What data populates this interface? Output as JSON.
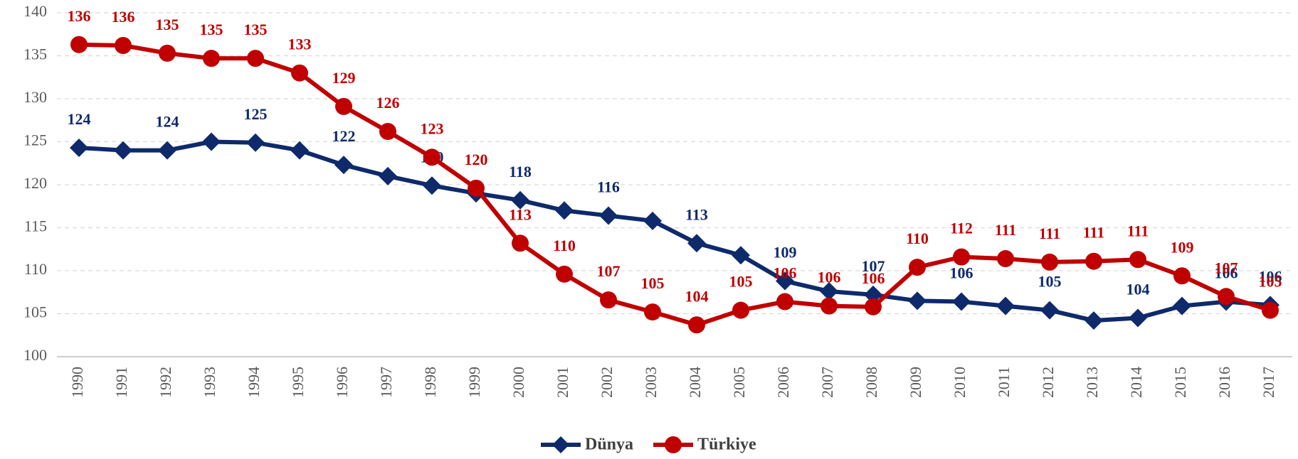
{
  "chart_data": {
    "type": "line",
    "categories": [
      "1990",
      "1991",
      "1992",
      "1993",
      "1994",
      "1995",
      "1996",
      "1997",
      "1998",
      "1999",
      "2000",
      "2001",
      "2002",
      "2003",
      "2004",
      "2005",
      "2006",
      "2007",
      "2008",
      "2009",
      "2010",
      "2011",
      "2012",
      "2013",
      "2014",
      "2015",
      "2016",
      "2017"
    ],
    "series": [
      {
        "name": "Dünya",
        "color": "#0e2a6b",
        "marker": "diamond",
        "values": [
          124.3,
          124.0,
          124.0,
          125.0,
          124.9,
          124.0,
          122.3,
          121.0,
          119.9,
          119.0,
          118.2,
          117.0,
          116.4,
          115.8,
          113.2,
          111.8,
          108.8,
          107.6,
          107.2,
          106.5,
          106.4,
          105.9,
          105.4,
          104.2,
          104.5,
          105.9,
          106.4,
          106.0
        ],
        "value_labels": [
          "124",
          null,
          "124",
          null,
          "125",
          null,
          "122",
          null,
          "120",
          null,
          "118",
          null,
          "116",
          null,
          "113",
          null,
          "109",
          null,
          "107",
          null,
          "106",
          null,
          "105",
          null,
          "104",
          null,
          "106",
          "106"
        ]
      },
      {
        "name": "Türkiye",
        "color": "#c00000",
        "marker": "circle",
        "values": [
          136.3,
          136.2,
          135.3,
          134.7,
          134.7,
          133.0,
          129.1,
          126.2,
          123.2,
          119.6,
          113.2,
          109.6,
          106.6,
          105.2,
          103.7,
          105.4,
          106.4,
          105.9,
          105.8,
          110.4,
          111.6,
          111.4,
          111.0,
          111.1,
          111.3,
          109.4,
          107.0,
          105.4
        ],
        "value_labels": [
          "136",
          "136",
          "135",
          "135",
          "135",
          "133",
          "129",
          "126",
          "123",
          "120",
          "113",
          "110",
          "107",
          "105",
          "104",
          "105",
          "106",
          "106",
          "106",
          "110",
          "112",
          "111",
          "111",
          "111",
          "111",
          "109",
          "107",
          "105"
        ]
      }
    ],
    "ylim": [
      100,
      140
    ],
    "yticks": [
      100,
      105,
      110,
      115,
      120,
      125,
      130,
      135,
      140
    ],
    "grid": true,
    "legend": "bottom"
  }
}
